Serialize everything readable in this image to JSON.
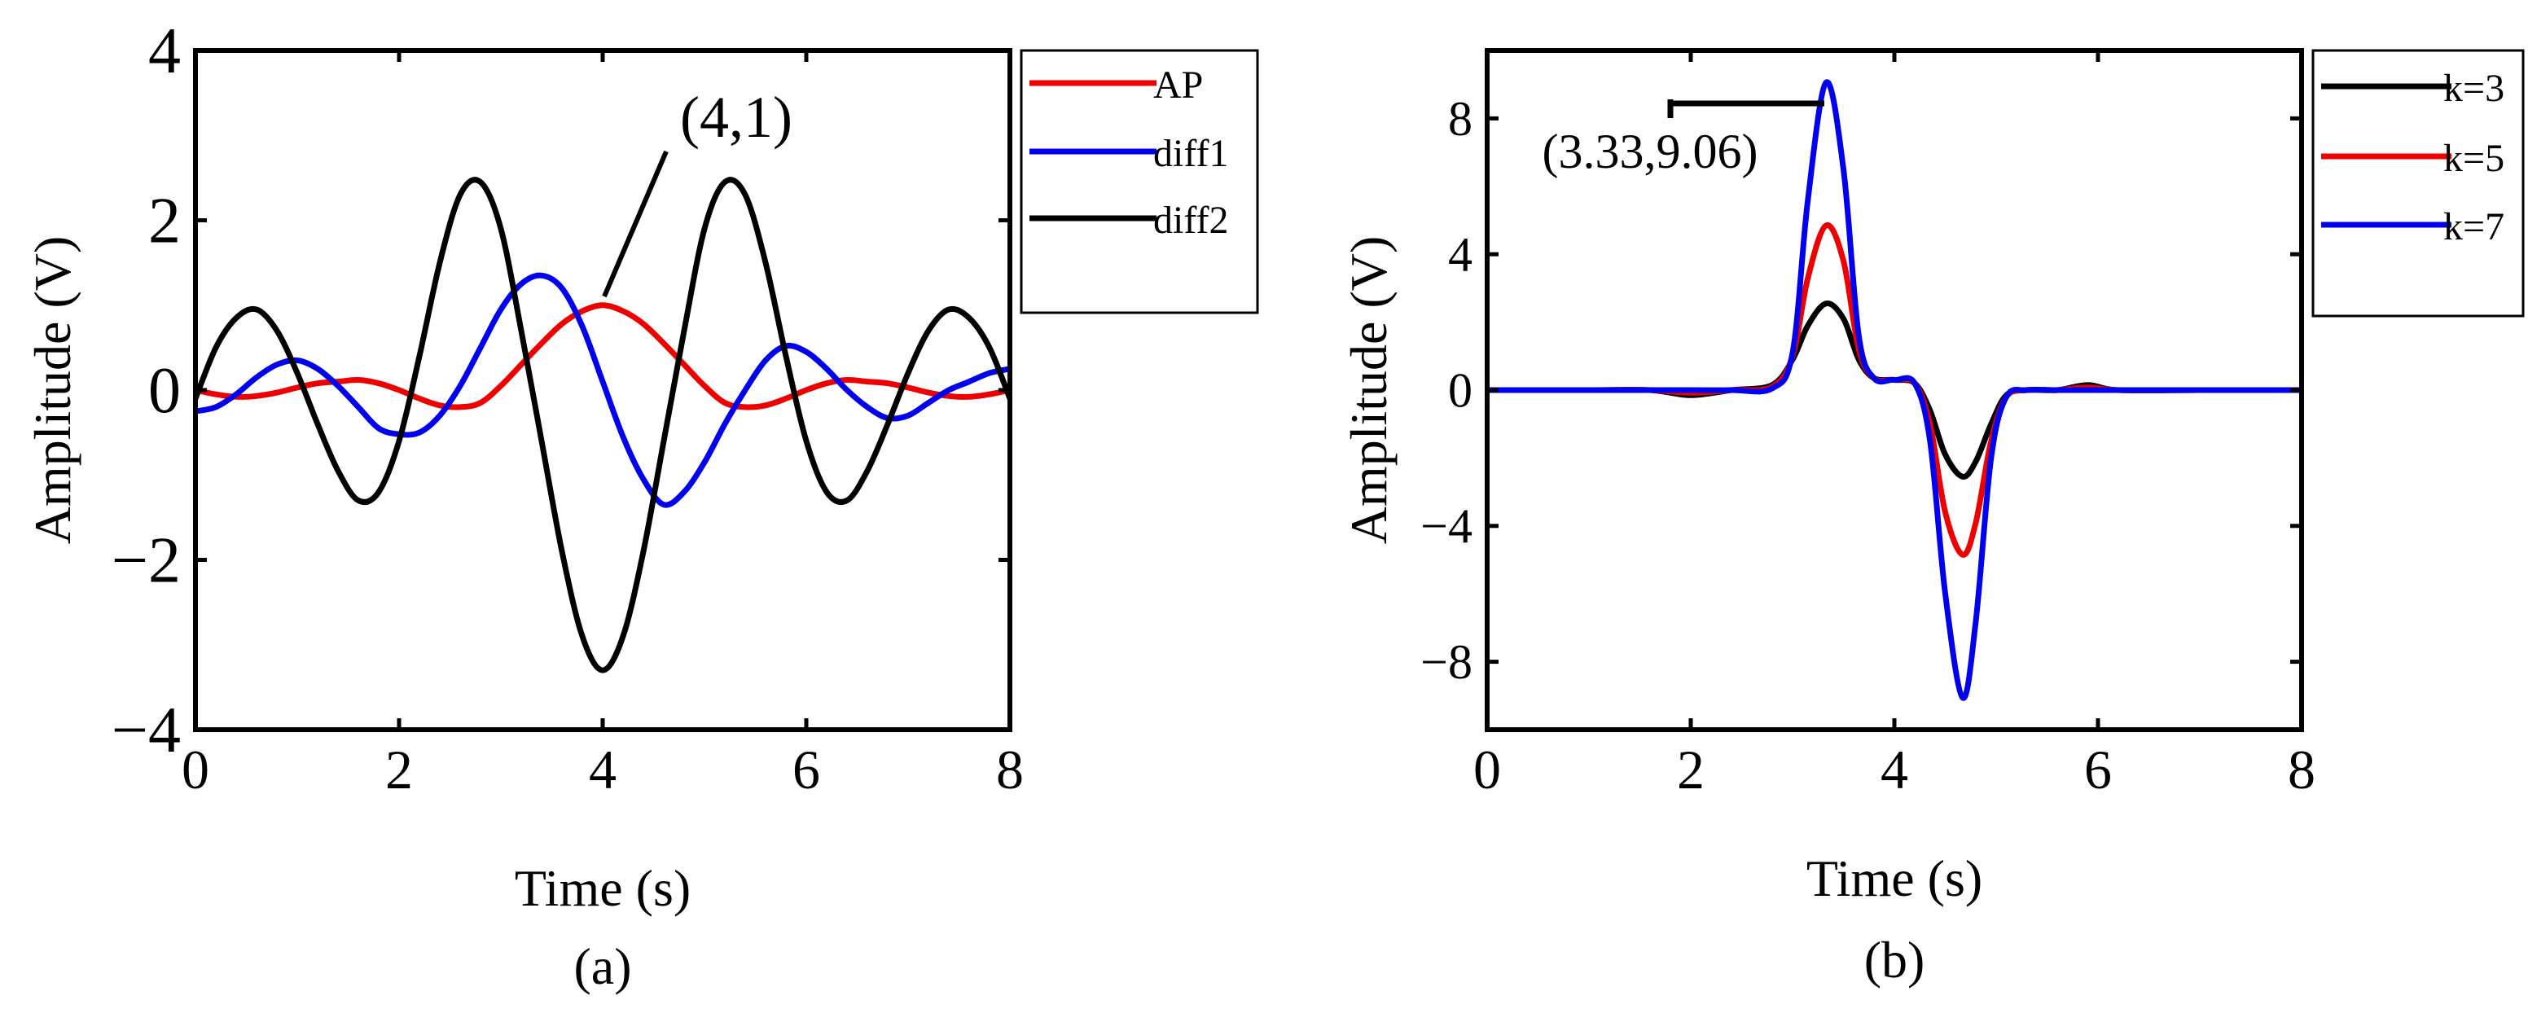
{
  "colors": {
    "red": "#ee0000",
    "blue": "#0000ee",
    "black": "#000000"
  },
  "chart_data": [
    {
      "type": "line",
      "panel_label": "(a)",
      "xlabel": "Time (s)",
      "ylabel": "Amplitude (V)",
      "xlim": [
        0,
        8
      ],
      "ylim": [
        -4,
        4
      ],
      "xticks": [
        "0",
        "2",
        "4",
        "6",
        "8"
      ],
      "yticks": [
        "−4",
        "−2",
        "0",
        "2",
        "4"
      ],
      "grid": false,
      "legend_position": "outside-right-top",
      "annotation": {
        "text": "(4,1)",
        "x": 4,
        "y": 1
      },
      "x": [
        0,
        0.2,
        0.4,
        0.6,
        0.8,
        1,
        1.2,
        1.4,
        1.6,
        1.8,
        2,
        2.2,
        2.4,
        2.6,
        2.8,
        3,
        3.2,
        3.4,
        3.6,
        3.8,
        4,
        4.2,
        4.4,
        4.6,
        4.8,
        5,
        5.2,
        5.4,
        5.6,
        5.8,
        6,
        6.2,
        6.4,
        6.6,
        6.8,
        7,
        7.2,
        7.4,
        7.6,
        7.8,
        8
      ],
      "series": [
        {
          "name": "AP",
          "color": "#ee0000",
          "values": [
            0,
            -0.05,
            -0.08,
            -0.07,
            -0.03,
            0.03,
            0.08,
            0.1,
            0.12,
            0.08,
            0,
            -0.1,
            -0.18,
            -0.2,
            -0.15,
            0.05,
            0.3,
            0.55,
            0.78,
            0.93,
            1.0,
            0.93,
            0.78,
            0.55,
            0.3,
            0.05,
            -0.15,
            -0.2,
            -0.18,
            -0.1,
            0,
            0.08,
            0.12,
            0.1,
            0.08,
            0.03,
            -0.03,
            -0.07,
            -0.08,
            -0.05,
            0
          ]
        },
        {
          "name": "diff1",
          "color": "#0000ee",
          "values": [
            -0.25,
            -0.2,
            -0.05,
            0.15,
            0.3,
            0.35,
            0.25,
            0.05,
            -0.2,
            -0.45,
            -0.52,
            -0.5,
            -0.3,
            0.05,
            0.5,
            0.95,
            1.25,
            1.35,
            1.2,
            0.75,
            0.1,
            -0.55,
            -1.05,
            -1.35,
            -1.2,
            -0.85,
            -0.4,
            0.0,
            0.35,
            0.52,
            0.45,
            0.25,
            0.0,
            -0.2,
            -0.33,
            -0.3,
            -0.15,
            0.0,
            0.1,
            0.2,
            0.25
          ]
        },
        {
          "name": "diff2",
          "color": "#000000",
          "values": [
            -0.1,
            0.5,
            0.85,
            0.95,
            0.7,
            0.2,
            -0.4,
            -0.95,
            -1.3,
            -1.2,
            -0.6,
            0.4,
            1.5,
            2.3,
            2.45,
            1.9,
            0.7,
            -0.6,
            -1.9,
            -2.9,
            -3.3,
            -2.9,
            -1.9,
            -0.6,
            0.7,
            1.9,
            2.45,
            2.3,
            1.5,
            0.4,
            -0.6,
            -1.2,
            -1.3,
            -0.95,
            -0.4,
            0.2,
            0.7,
            0.95,
            0.85,
            0.5,
            -0.1
          ]
        }
      ]
    },
    {
      "type": "line",
      "panel_label": "(b)",
      "xlabel": "Time (s)",
      "ylabel": "Amplitude (V)",
      "xlim": [
        0,
        8
      ],
      "ylim": [
        -10,
        10
      ],
      "xticks": [
        "0",
        "2",
        "4",
        "6",
        "8"
      ],
      "yticks": [
        "−8",
        "−4",
        "0",
        "4",
        "8"
      ],
      "ytick_values": [
        -8,
        -4,
        0,
        4,
        8
      ],
      "grid": false,
      "legend_position": "outside-right-top",
      "annotation": {
        "text": "(3.33,9.06)",
        "x": 3.33,
        "y": 9.06
      },
      "x": [
        0,
        1,
        1.6,
        2,
        2.4,
        2.8,
        3.0,
        3.15,
        3.33,
        3.5,
        3.65,
        3.8,
        4.0,
        4.2,
        4.35,
        4.5,
        4.67,
        4.8,
        4.95,
        5.1,
        5.3,
        5.6,
        5.9,
        6.2,
        7,
        8
      ],
      "series": [
        {
          "name": "k=3",
          "color": "#000000",
          "values": [
            0,
            0,
            0,
            -0.15,
            0,
            0.15,
            0.9,
            1.9,
            2.55,
            2.1,
            0.9,
            0.35,
            0.3,
            0.2,
            -0.6,
            -1.9,
            -2.55,
            -2.1,
            -1.0,
            -0.15,
            0,
            0,
            0.15,
            0,
            0,
            0
          ]
        },
        {
          "name": "k=5",
          "color": "#ee0000",
          "values": [
            0,
            0,
            0,
            -0.08,
            0,
            0.1,
            1.0,
            3.3,
            4.85,
            3.8,
            1.2,
            0.35,
            0.3,
            0.2,
            -1.0,
            -3.6,
            -4.85,
            -3.9,
            -1.5,
            -0.2,
            0,
            0,
            0.08,
            0,
            0,
            0
          ]
        },
        {
          "name": "k=7",
          "color": "#0000ee",
          "values": [
            0,
            0,
            0,
            0,
            0,
            0.05,
            1.1,
            5.6,
            9.06,
            6.5,
            1.6,
            0.35,
            0.3,
            0.2,
            -1.5,
            -6.0,
            -9.06,
            -6.8,
            -2.0,
            -0.2,
            0,
            0,
            0,
            0,
            0,
            0
          ]
        }
      ]
    }
  ]
}
